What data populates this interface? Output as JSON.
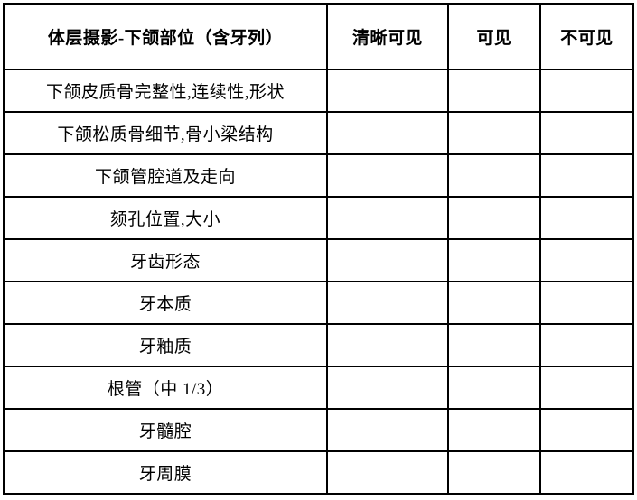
{
  "table": {
    "title": "体层摄影-下颌部位（含牙列）",
    "columns": [
      "清晰可见",
      "可见",
      "不可见"
    ],
    "rows": [
      {
        "label": "下颌皮质骨完整性,连续性,形状"
      },
      {
        "label": "下颌松质骨细节,骨小梁结构"
      },
      {
        "label": "下颌管腔道及走向"
      },
      {
        "label": "颏孔位置,大小"
      },
      {
        "label": "牙齿形态"
      },
      {
        "label": "牙本质"
      },
      {
        "label": "牙釉质"
      },
      {
        "label": "根管（中 1/3）"
      },
      {
        "label": "牙髓腔"
      },
      {
        "label": "牙周膜"
      }
    ],
    "colors": {
      "border": "#000000",
      "text": "#000000",
      "background": "#ffffff"
    }
  }
}
